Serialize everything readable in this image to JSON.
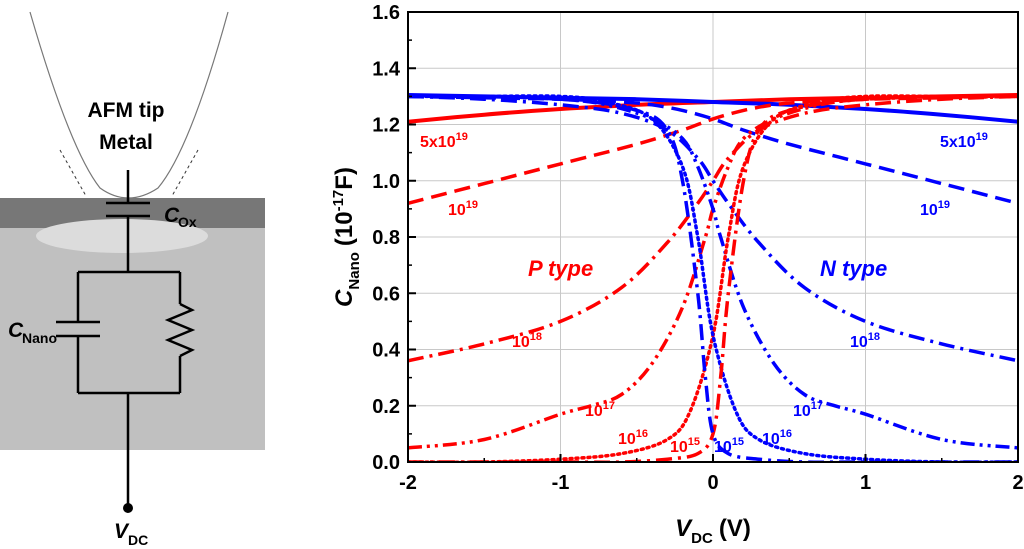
{
  "schematic": {
    "tip_label_line1": "AFM tip",
    "tip_label_line2": "Metal",
    "cox_main": "C",
    "cox_sub": "Ox",
    "cnano_main": "C",
    "cnano_sub": "Nano",
    "vdc_main": "V",
    "vdc_sub": "DC"
  },
  "chart_data": {
    "type": "line",
    "title": "",
    "ylabel_main": "C",
    "ylabel_sub": "Nano",
    "ylabel_unit_pre": "(10",
    "ylabel_unit_exp": "-17",
    "ylabel_unit_post": "F)",
    "xlabel_main": "V",
    "xlabel_sub": "DC",
    "xlabel_unit": "(V)",
    "xlim": [
      -2,
      2
    ],
    "ylim": [
      0,
      1.6
    ],
    "grid": true,
    "xticks": [
      "-2",
      "-1",
      "0",
      "1",
      "2"
    ],
    "yticks": [
      "0.0",
      "0.2",
      "0.4",
      "0.6",
      "0.8",
      "1.0",
      "1.2",
      "1.4",
      "1.6"
    ],
    "colors": {
      "p": "#ff0000",
      "n": "#0000ff"
    },
    "annotations": {
      "p_type": "P type",
      "n_type": "N type",
      "p_5e19_base": "5x10",
      "p_5e19_exp": "19",
      "n_5e19_base": "5x10",
      "n_5e19_exp": "19",
      "p_1e19_base": "10",
      "p_1e19_exp": "19",
      "n_1e19_base": "10",
      "n_1e19_exp": "19",
      "p_1e18_base": "10",
      "p_1e18_exp": "18",
      "n_1e18_base": "10",
      "n_1e18_exp": "18",
      "p_1e17_base": "10",
      "p_1e17_exp": "17",
      "n_1e17_base": "10",
      "n_1e17_exp": "17",
      "p_1e16_base": "10",
      "p_1e16_exp": "16",
      "n_1e16_base": "10",
      "n_1e16_exp": "16",
      "p_1e15_base": "10",
      "p_1e15_exp": "15",
      "n_1e15_base": "10",
      "n_1e15_exp": "15"
    },
    "series": [
      {
        "name": "P 5x10^19",
        "type": "p",
        "dash": "solid",
        "x": [
          -2,
          -1.5,
          -1,
          -0.5,
          0,
          0.5,
          1,
          1.5,
          2
        ],
        "values": [
          1.21,
          1.235,
          1.255,
          1.27,
          1.28,
          1.29,
          1.295,
          1.3,
          1.305
        ]
      },
      {
        "name": "N 5x10^19",
        "type": "n",
        "dash": "solid",
        "x": [
          -2,
          -1.5,
          -1,
          -0.5,
          0,
          0.5,
          1,
          1.5,
          2
        ],
        "values": [
          1.305,
          1.3,
          1.295,
          1.29,
          1.28,
          1.27,
          1.255,
          1.235,
          1.21
        ]
      },
      {
        "name": "P 10^19",
        "type": "p",
        "dash": "dash",
        "x": [
          -2,
          -1.5,
          -1,
          -0.5,
          -0.2,
          0,
          0.2,
          0.4,
          0.6,
          1,
          1.5,
          2
        ],
        "values": [
          0.92,
          0.99,
          1.06,
          1.13,
          1.18,
          1.22,
          1.25,
          1.27,
          1.28,
          1.29,
          1.295,
          1.3
        ]
      },
      {
        "name": "N 10^19",
        "type": "n",
        "dash": "dash",
        "x": [
          -2,
          -1.5,
          -1,
          -0.6,
          -0.4,
          -0.2,
          0,
          0.2,
          0.5,
          1,
          1.5,
          2
        ],
        "values": [
          1.3,
          1.295,
          1.29,
          1.28,
          1.27,
          1.25,
          1.22,
          1.18,
          1.13,
          1.06,
          0.99,
          0.92
        ]
      },
      {
        "name": "P 10^18",
        "type": "p",
        "dash": "dashdot",
        "x": [
          -2,
          -1.5,
          -1,
          -0.6,
          -0.3,
          -0.1,
          0,
          0.1,
          0.3,
          0.6,
          1,
          1.5,
          2
        ],
        "values": [
          0.36,
          0.42,
          0.5,
          0.62,
          0.78,
          0.92,
          1.0,
          1.08,
          1.18,
          1.24,
          1.27,
          1.29,
          1.3
        ]
      },
      {
        "name": "N 10^18",
        "type": "n",
        "dash": "dashdot",
        "x": [
          -2,
          -1.5,
          -1,
          -0.6,
          -0.3,
          -0.1,
          0,
          0.1,
          0.3,
          0.6,
          1,
          1.5,
          2
        ],
        "values": [
          1.3,
          1.29,
          1.27,
          1.24,
          1.18,
          1.08,
          1.0,
          0.92,
          0.78,
          0.62,
          0.5,
          0.42,
          0.36
        ]
      },
      {
        "name": "P 10^17",
        "type": "p",
        "dash": "dashdotdot",
        "x": [
          -2,
          -1.5,
          -1,
          -0.8,
          -0.6,
          -0.4,
          -0.2,
          -0.05,
          0,
          0.1,
          0.2,
          0.4,
          0.7,
          1,
          1.5,
          2
        ],
        "values": [
          0.05,
          0.08,
          0.17,
          0.2,
          0.24,
          0.35,
          0.55,
          0.8,
          0.9,
          1.05,
          1.15,
          1.22,
          1.27,
          1.29,
          1.3,
          1.3
        ]
      },
      {
        "name": "N 10^17",
        "type": "n",
        "dash": "dashdotdot",
        "x": [
          -2,
          -1.5,
          -1,
          -0.7,
          -0.4,
          -0.2,
          -0.1,
          0,
          0.05,
          0.2,
          0.4,
          0.6,
          0.8,
          1,
          1.5,
          2
        ],
        "values": [
          1.3,
          1.3,
          1.29,
          1.27,
          1.22,
          1.15,
          1.05,
          0.9,
          0.8,
          0.55,
          0.35,
          0.24,
          0.2,
          0.17,
          0.08,
          0.05
        ]
      },
      {
        "name": "P 10^16",
        "type": "p",
        "dash": "dot",
        "x": [
          -2,
          -1.5,
          -1,
          -0.6,
          -0.3,
          -0.15,
          0,
          0.1,
          0.2,
          0.4,
          0.7,
          1,
          1.5,
          2
        ],
        "values": [
          0.0,
          0.0,
          0.01,
          0.03,
          0.08,
          0.18,
          0.45,
          0.8,
          1.05,
          1.22,
          1.28,
          1.3,
          1.3,
          1.3
        ]
      },
      {
        "name": "N 10^16",
        "type": "n",
        "dash": "dot",
        "x": [
          -2,
          -1.5,
          -1,
          -0.7,
          -0.4,
          -0.2,
          -0.1,
          0,
          0.15,
          0.3,
          0.6,
          1,
          1.5,
          2
        ],
        "values": [
          1.3,
          1.3,
          1.3,
          1.28,
          1.22,
          1.05,
          0.8,
          0.45,
          0.18,
          0.08,
          0.03,
          0.01,
          0.0,
          0.0
        ]
      },
      {
        "name": "P 10^15",
        "type": "p",
        "dash": "dashdot",
        "x": [
          -2,
          -1,
          -0.6,
          -0.3,
          -0.1,
          0,
          0.05,
          0.1,
          0.2,
          0.3,
          0.5,
          1,
          2
        ],
        "values": [
          0.0,
          0.0,
          0.0,
          0.01,
          0.03,
          0.1,
          0.3,
          0.6,
          1.0,
          1.18,
          1.25,
          1.29,
          1.3
        ]
      },
      {
        "name": "N 10^15",
        "type": "n",
        "dash": "dashdot",
        "x": [
          -2,
          -1,
          -0.5,
          -0.3,
          -0.2,
          -0.1,
          -0.05,
          0,
          0.1,
          0.3,
          0.6,
          1,
          2
        ],
        "values": [
          1.3,
          1.29,
          1.25,
          1.18,
          1.0,
          0.6,
          0.3,
          0.1,
          0.03,
          0.01,
          0.0,
          0.0,
          0.0
        ]
      }
    ]
  }
}
